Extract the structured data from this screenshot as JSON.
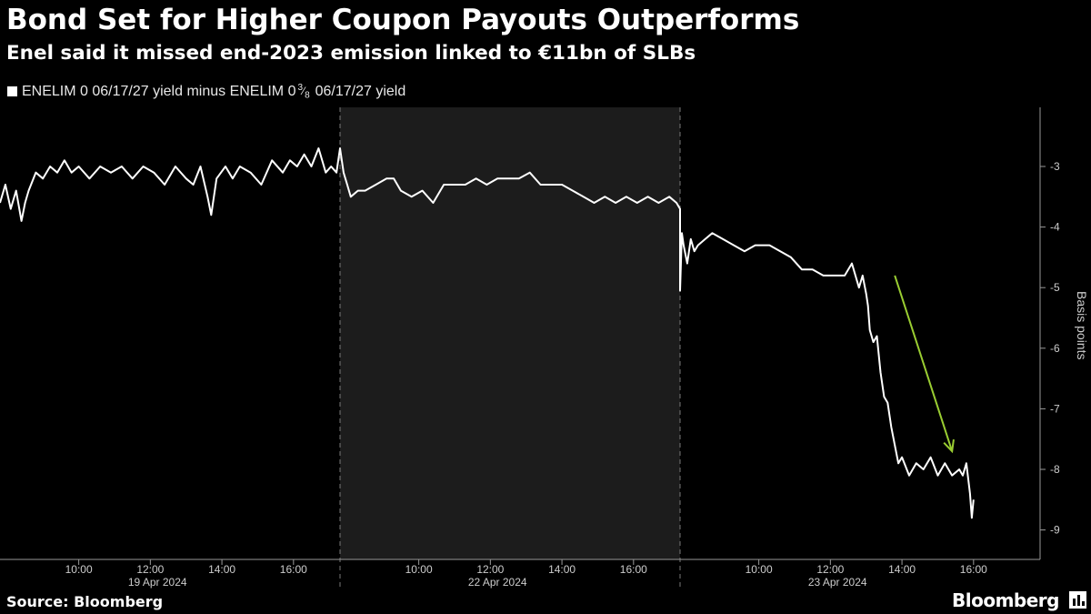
{
  "title": "Bond Set for Higher Coupon Payouts Outperforms",
  "subtitle": "Enel said it missed end-2023 emission linked to €11bn of SLBs",
  "legend": {
    "prefix": "ENELIM 0 06/17/27 yield minus ENELIM 0",
    "fraction_num": "3",
    "fraction_den": "8",
    "suffix": "06/17/27 yield",
    "color": "#ffffff"
  },
  "footer": {
    "source": "Source: Bloomberg",
    "brand": "Bloomberg"
  },
  "chart_data": {
    "type": "line",
    "ylabel": "Basis points",
    "ylim": [
      -9.5,
      -2.0
    ],
    "yticks": [
      -3,
      -4,
      -5,
      -6,
      -7,
      -8,
      -9
    ],
    "ytick_labels": [
      "-3",
      "-4",
      "-5",
      "-6",
      "-7",
      "-8",
      "-9"
    ],
    "panels": [
      {
        "date": "19 Apr 2024",
        "shaded": false
      },
      {
        "date": "22 Apr 2024",
        "shaded": true
      },
      {
        "date": "23 Apr 2024",
        "shaded": false
      }
    ],
    "xtick_labels": [
      "10:00",
      "12:00",
      "14:00",
      "16:00"
    ],
    "x_range_hours": [
      7.8,
      17.3
    ],
    "grid": false,
    "colors": {
      "line": "#ffffff",
      "shade": "#1c1c1c",
      "annotation_arrow": "#9acd32"
    },
    "annotation": {
      "type": "arrow",
      "from": {
        "panel": 2,
        "x": 13.8,
        "y": -4.8
      },
      "to": {
        "panel": 2,
        "x": 15.4,
        "y": -7.7
      }
    },
    "series": [
      {
        "values_by_panel": [
          {
            "x": [
              7.8,
              7.95,
              8.1,
              8.25,
              8.4,
              8.5,
              8.6,
              8.8,
              9.0,
              9.2,
              9.4,
              9.6,
              9.8,
              10.0,
              10.3,
              10.6,
              10.9,
              11.2,
              11.5,
              11.8,
              12.1,
              12.4,
              12.7,
              13.0,
              13.2,
              13.4,
              13.6,
              13.7,
              13.85,
              14.1,
              14.3,
              14.5,
              14.8,
              15.1,
              15.4,
              15.7,
              15.9,
              16.1,
              16.3,
              16.5,
              16.7,
              16.9,
              17.05,
              17.2,
              17.3
            ],
            "y": [
              -3.6,
              -3.3,
              -3.7,
              -3.4,
              -3.9,
              -3.6,
              -3.4,
              -3.1,
              -3.2,
              -3.0,
              -3.1,
              -2.9,
              -3.1,
              -3.0,
              -3.2,
              -3.0,
              -3.1,
              -3.0,
              -3.2,
              -3.0,
              -3.1,
              -3.3,
              -3.0,
              -3.2,
              -3.3,
              -3.0,
              -3.5,
              -3.8,
              -3.2,
              -3.0,
              -3.2,
              -3.0,
              -3.1,
              -3.3,
              -2.9,
              -3.1,
              -2.9,
              -3.0,
              -2.8,
              -3.0,
              -2.7,
              -3.1,
              -3.0,
              -3.1,
              -2.7
            ]
          },
          {
            "x": [
              7.8,
              7.9,
              8.0,
              8.1,
              8.3,
              8.5,
              8.8,
              9.1,
              9.3,
              9.5,
              9.8,
              10.1,
              10.4,
              10.7,
              11.0,
              11.3,
              11.6,
              11.9,
              12.2,
              12.5,
              12.8,
              13.1,
              13.4,
              13.7,
              14.0,
              14.3,
              14.6,
              14.9,
              15.2,
              15.5,
              15.8,
              16.1,
              16.4,
              16.7,
              17.0,
              17.2,
              17.3
            ],
            "y": [
              -2.7,
              -3.1,
              -3.3,
              -3.5,
              -3.4,
              -3.4,
              -3.3,
              -3.2,
              -3.2,
              -3.4,
              -3.5,
              -3.4,
              -3.6,
              -3.3,
              -3.3,
              -3.3,
              -3.2,
              -3.3,
              -3.2,
              -3.2,
              -3.2,
              -3.1,
              -3.3,
              -3.3,
              -3.3,
              -3.4,
              -3.5,
              -3.6,
              -3.5,
              -3.6,
              -3.5,
              -3.6,
              -3.5,
              -3.6,
              -3.5,
              -3.6,
              -3.7
            ]
          },
          {
            "x": [
              7.8,
              7.85,
              7.9,
              8.0,
              8.1,
              8.2,
              8.3,
              8.5,
              8.7,
              9.0,
              9.3,
              9.6,
              9.9,
              10.1,
              10.3,
              10.6,
              10.9,
              11.2,
              11.5,
              11.8,
              12.1,
              12.4,
              12.6,
              12.8,
              12.9,
              13.0,
              13.05,
              13.1,
              13.2,
              13.3,
              13.4,
              13.5,
              13.6,
              13.7,
              13.8,
              13.9,
              14.0,
              14.2,
              14.4,
              14.6,
              14.8,
              15.0,
              15.2,
              15.4,
              15.6,
              15.7,
              15.8,
              15.9,
              15.95,
              16.0
            ],
            "y": [
              -5.05,
              -4.1,
              -4.3,
              -4.6,
              -4.2,
              -4.4,
              -4.3,
              -4.2,
              -4.1,
              -4.2,
              -4.3,
              -4.4,
              -4.3,
              -4.3,
              -4.3,
              -4.4,
              -4.5,
              -4.7,
              -4.7,
              -4.8,
              -4.8,
              -4.8,
              -4.6,
              -5.0,
              -4.8,
              -5.1,
              -5.3,
              -5.7,
              -5.9,
              -5.8,
              -6.4,
              -6.8,
              -6.9,
              -7.3,
              -7.6,
              -7.9,
              -7.8,
              -8.1,
              -7.9,
              -8.0,
              -7.8,
              -8.1,
              -7.9,
              -8.1,
              -8.0,
              -8.1,
              -7.9,
              -8.4,
              -8.8,
              -8.5
            ]
          }
        ]
      }
    ]
  }
}
